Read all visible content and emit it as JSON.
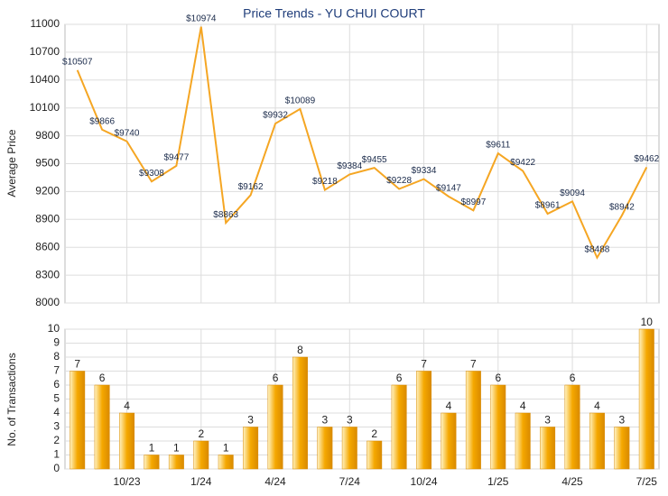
{
  "chart_data": [
    {
      "type": "line",
      "title": "Price Trends - YU CHUI COURT",
      "y_label": "Average Price",
      "color": "#f5a623",
      "values": [
        10507,
        9866,
        9740,
        9308,
        9477,
        10974,
        8863,
        9162,
        9932,
        10089,
        9218,
        9384,
        9455,
        9228,
        9334,
        9147,
        8997,
        9611,
        9422,
        8961,
        9094,
        8488,
        8942,
        9462
      ],
      "value_labels": [
        "$10507",
        "$9866",
        "$9740",
        "$9308",
        "$9477",
        "$10974",
        "$8863",
        "$9162",
        "$9932",
        "$10089",
        "$9218",
        "$9384",
        "$9455",
        "$9228",
        "$9334",
        "$9147",
        "$8997",
        "$9611",
        "$9422",
        "$8961",
        "$9094",
        "$8488",
        "$8942",
        "$9462"
      ],
      "ylim": [
        8000,
        11000
      ],
      "yticks": [
        8000,
        8300,
        8600,
        8900,
        9200,
        9500,
        9800,
        10100,
        10400,
        10700,
        11000
      ],
      "grid": true
    },
    {
      "type": "bar",
      "y_label": "No. of Transactions",
      "color": "#f5a800",
      "categories": [
        null,
        null,
        "10/23",
        null,
        null,
        "1/24",
        null,
        null,
        "4/24",
        null,
        null,
        "7/24",
        null,
        null,
        "10/24",
        null,
        null,
        "1/25",
        null,
        null,
        "4/25",
        null,
        null,
        "7/25"
      ],
      "values": [
        7,
        6,
        4,
        1,
        1,
        2,
        1,
        3,
        6,
        8,
        3,
        3,
        2,
        6,
        7,
        4,
        7,
        6,
        4,
        3,
        6,
        4,
        3,
        10
      ],
      "ylim": [
        0,
        10
      ],
      "yticks": [
        0,
        1,
        2,
        3,
        4,
        5,
        6,
        7,
        8,
        9,
        10
      ],
      "grid": true
    }
  ]
}
